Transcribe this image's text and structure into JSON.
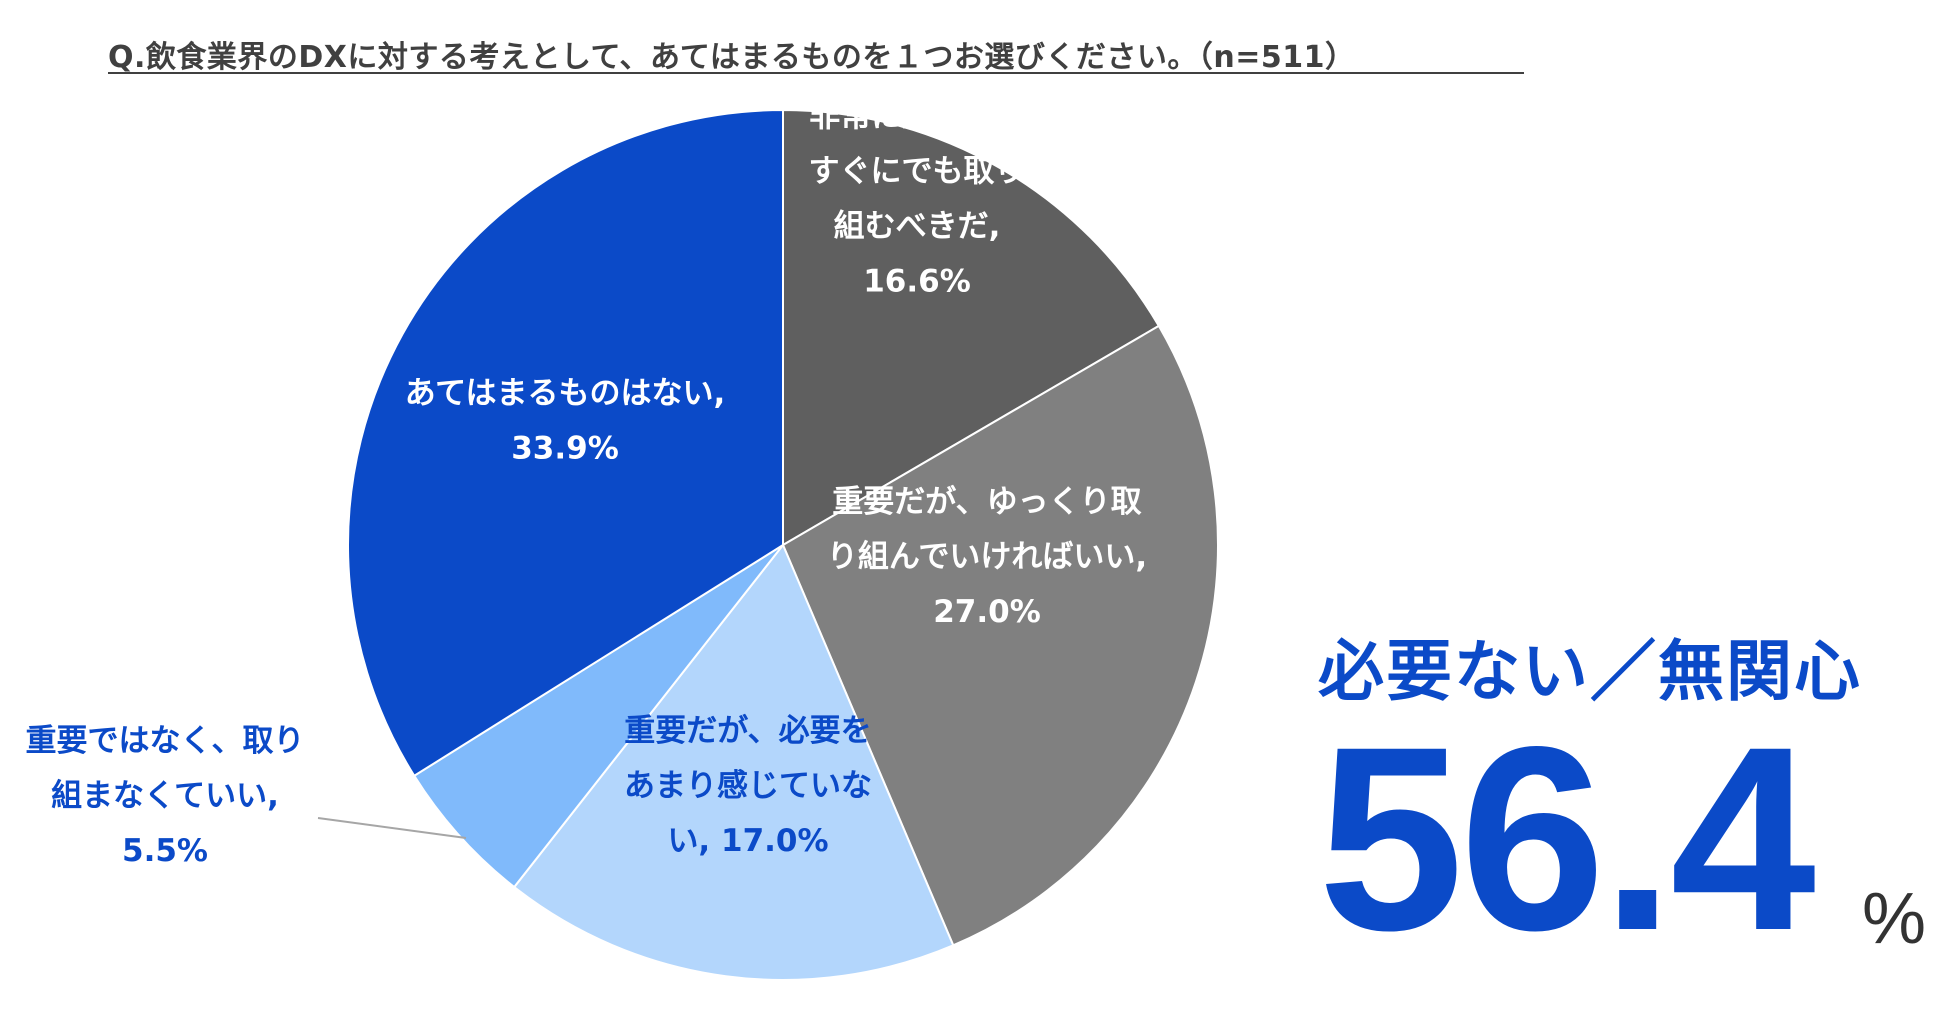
{
  "chart_data": {
    "type": "pie",
    "title": "Q.飲食業界のDXに対する考えとして、あてはまるものを１つお選びください。（n=511）",
    "slices": [
      {
        "lines": [
          "非常に重要で、",
          "すぐにでも取り",
          "組むべきだ,",
          "16.6%"
        ],
        "value": 16.6,
        "color": "#5f5f5f",
        "label_color": "#ffffff"
      },
      {
        "lines": [
          "重要だが、ゆっくり取",
          "り組んでいければいい,",
          "27.0%"
        ],
        "value": 27.0,
        "color": "#808080",
        "label_color": "#ffffff"
      },
      {
        "lines": [
          "重要だが、必要を",
          "あまり感じていな",
          "い, 17.0%"
        ],
        "value": 17.0,
        "color": "#b3d6fc",
        "label_color": "#0b4ac8"
      },
      {
        "lines": [
          "重要ではなく、取り",
          "組まなくていい,",
          "5.5%"
        ],
        "value": 5.5,
        "color": "#80bafb",
        "label_color": "#0b4ac8"
      },
      {
        "lines": [
          "あてはまるものはない,",
          "33.9%"
        ],
        "value": 33.9,
        "color": "#0b4ac8",
        "label_color": "#ffffff"
      }
    ]
  },
  "callout": {
    "heading": "必要ない／無関心",
    "value": "56.4",
    "unit": "%",
    "color": "#0b4ac8"
  }
}
